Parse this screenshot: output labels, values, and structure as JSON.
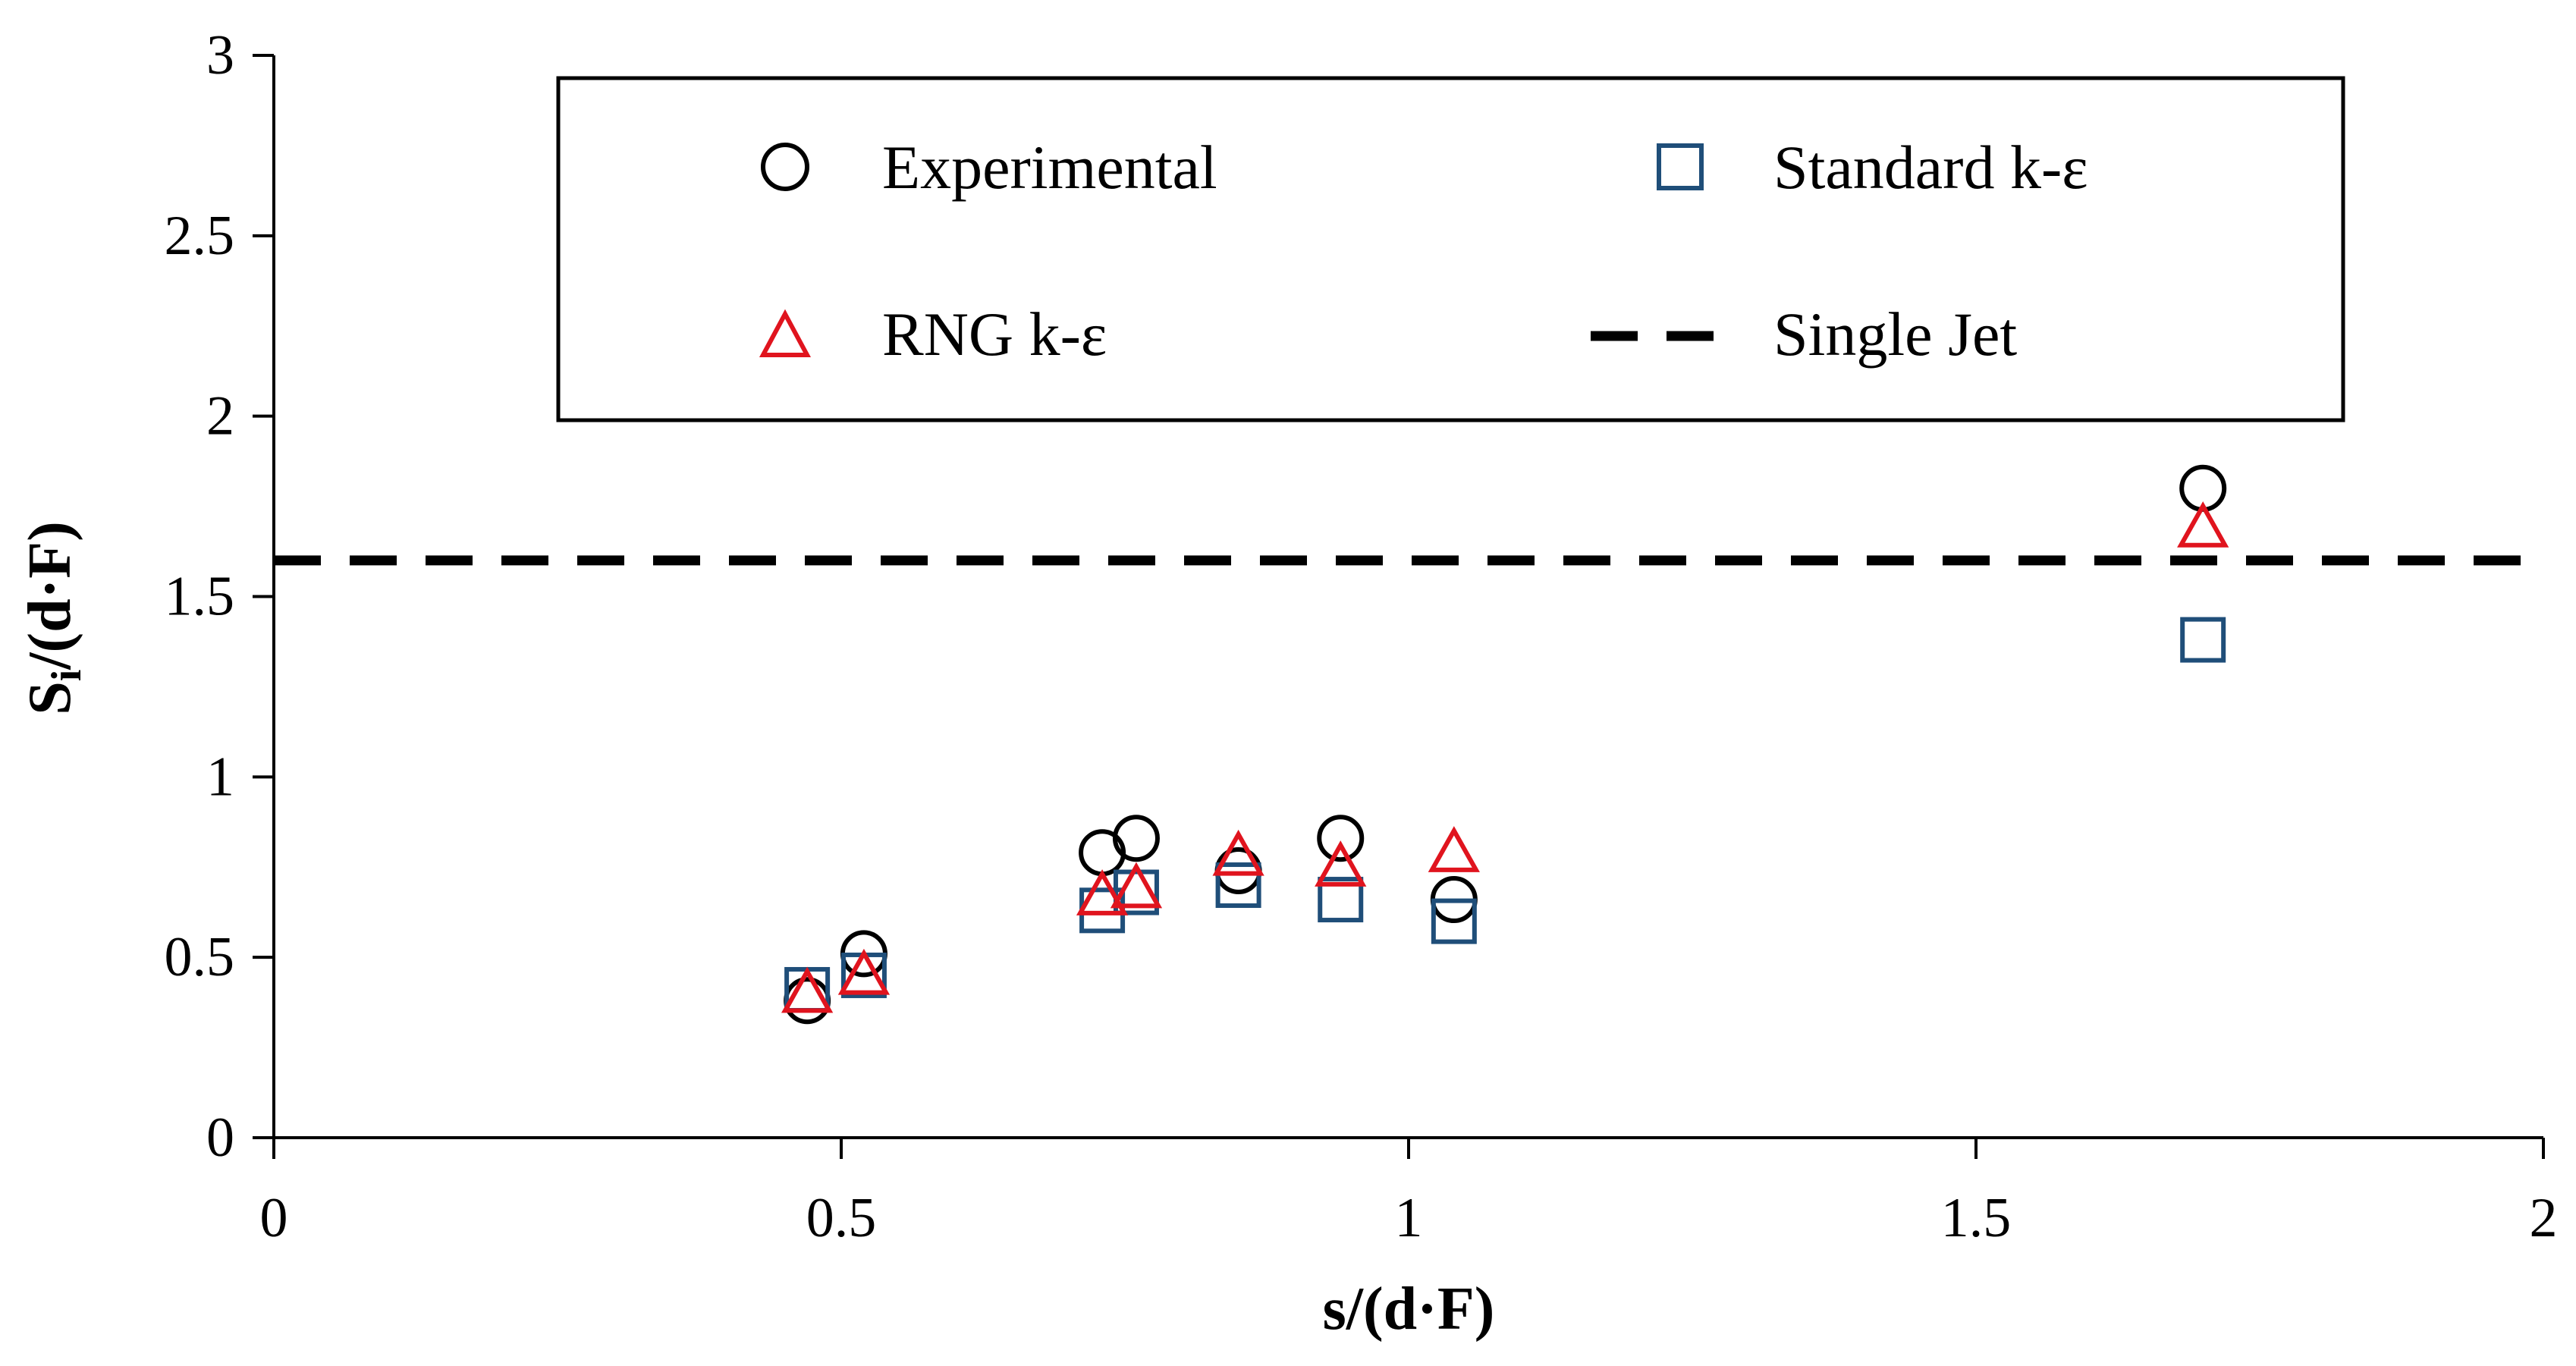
{
  "chart_data": {
    "type": "scatter",
    "xlabel": "s/(d·F)",
    "ylabel_main": "S",
    "ylabel_sub": "i",
    "ylabel_rest": "/(d·F)",
    "xlim": [
      0,
      2
    ],
    "ylim": [
      0,
      3
    ],
    "x_ticks": [
      0,
      0.5,
      1,
      1.5,
      2
    ],
    "x_tick_labels": [
      "0",
      "0.5",
      "1",
      "1.5",
      "2"
    ],
    "y_ticks": [
      0,
      0.5,
      1,
      1.5,
      2,
      2.5,
      3
    ],
    "y_tick_labels": [
      "0",
      "0.5",
      "1",
      "1.5",
      "2",
      "2.5",
      "3"
    ],
    "grid": false,
    "legend_position": "top",
    "series": [
      {
        "name": "Experimental",
        "marker": "circle",
        "color": "#000000",
        "x": [
          0.47,
          0.52,
          0.73,
          0.76,
          0.85,
          0.94,
          1.04,
          1.7
        ],
        "y": [
          0.38,
          0.51,
          0.79,
          0.83,
          0.74,
          0.83,
          0.66,
          1.8
        ]
      },
      {
        "name": "Standard k-ε",
        "marker": "square",
        "color": "#1F4E79",
        "x": [
          0.47,
          0.52,
          0.73,
          0.76,
          0.85,
          0.94,
          1.04,
          1.7
        ],
        "y": [
          0.41,
          0.45,
          0.63,
          0.68,
          0.7,
          0.66,
          0.6,
          1.38
        ]
      },
      {
        "name": "RNG k-ε",
        "marker": "triangle",
        "color": "#E0141E",
        "x": [
          0.47,
          0.52,
          0.73,
          0.76,
          0.85,
          0.94,
          1.04,
          1.7
        ],
        "y": [
          0.4,
          0.45,
          0.67,
          0.69,
          0.78,
          0.75,
          0.79,
          1.69
        ]
      },
      {
        "name": "Single Jet",
        "marker": "dashed-line",
        "color": "#000000",
        "y_const": 1.6
      }
    ]
  }
}
